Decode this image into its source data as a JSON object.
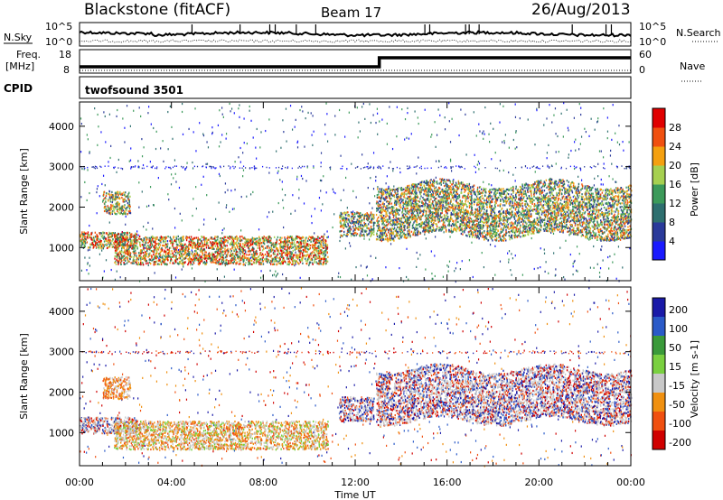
{
  "header": {
    "station": "Blackstone (fitACF)",
    "beam": "Beam 17",
    "date": "26/Aug/2013"
  },
  "noise_panel": {
    "left_label": "N.Sky",
    "right_label": "N.Search",
    "ticks": [
      "10^5",
      "10^0"
    ]
  },
  "freq_panel": {
    "left_label_1": "Freq.",
    "left_label_2": "[MHz]",
    "right_label": "Nave",
    "left_ticks": [
      "18",
      "8"
    ],
    "right_ticks": [
      "60",
      "0"
    ],
    "cpid_label": "CPID",
    "cpid_value": "twofsound 3501"
  },
  "chart_data": [
    {
      "type": "heatmap",
      "panel": "power",
      "ylabel": "Slant Range [km]",
      "yticks": [
        1000,
        2000,
        3000,
        4000
      ],
      "ylim": [
        180,
        4600
      ],
      "xlim_hours": [
        0,
        24
      ],
      "colorbar": {
        "label": "Power [dB]",
        "ticks": [
          "4",
          "8",
          "12",
          "16",
          "20",
          "24",
          "28"
        ],
        "colors": [
          "#1a1aff",
          "#2a3a9a",
          "#2e6f6f",
          "#3c9a5a",
          "#a6d050",
          "#f4a010",
          "#f05010",
          "#e00000"
        ]
      },
      "echo_regions": [
        {
          "t": [
            0.0,
            2.5
          ],
          "range_km": [
            1000,
            1400
          ],
          "power": "high"
        },
        {
          "t": [
            1.0,
            2.2
          ],
          "range_km": [
            1850,
            2400
          ],
          "power": "medium"
        },
        {
          "t": [
            1.5,
            10.8
          ],
          "range_km": [
            600,
            1300
          ],
          "power": "high"
        },
        {
          "t": [
            11.3,
            12.8
          ],
          "range_km": [
            1300,
            1900
          ],
          "power": "medium"
        },
        {
          "t": [
            12.9,
            24.0
          ],
          "range_km": [
            1300,
            2600
          ],
          "power": "medium"
        }
      ]
    },
    {
      "type": "heatmap",
      "panel": "velocity",
      "ylabel": "Slant Range [km]",
      "yticks": [
        1000,
        2000,
        3000,
        4000
      ],
      "ylim": [
        180,
        4600
      ],
      "xlim_hours": [
        0,
        24
      ],
      "xticks": [
        "00:00",
        "04:00",
        "08:00",
        "12:00",
        "16:00",
        "20:00",
        "00:00"
      ],
      "xlabel": "Time UT",
      "colorbar": {
        "label": "Velocity [m s-1]",
        "ticks": [
          "200",
          "100",
          "50",
          "15",
          "-15",
          "-50",
          "-100",
          "-200"
        ],
        "colors": [
          "#1a1aa8",
          "#2a5ac8",
          "#3a9a3a",
          "#7ad040",
          "#c8c8c8",
          "#f09010",
          "#f05010",
          "#d00000"
        ]
      }
    }
  ]
}
